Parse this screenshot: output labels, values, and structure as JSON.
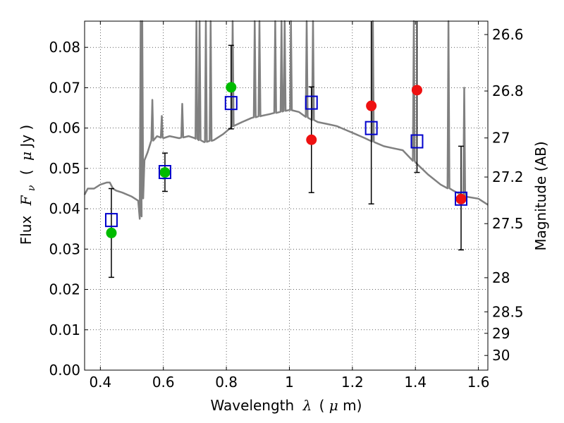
{
  "chart_data": {
    "type": "scatter",
    "xlabel_text": "Wavelength",
    "xlabel_symbol": "λ",
    "xlabel_unit_open": "(",
    "xlabel_unit_mu": "μ",
    "xlabel_unit_rest": "m)",
    "ylabel_text": "Flux",
    "ylabel_symbol": "F",
    "ylabel_sub": "ν",
    "ylabel_unit_open": "(",
    "ylabel_unit_mu": "μ",
    "ylabel_unit_rest": "Jy )",
    "y2label": "Magnitude (AB)",
    "xlim": [
      0.35,
      1.63
    ],
    "ylim": [
      0.0,
      0.0865
    ],
    "grid": true,
    "x_ticks": [
      0.4,
      0.6,
      0.8,
      1.0,
      1.2,
      1.4,
      1.6
    ],
    "x_tick_labels": [
      "0.4",
      "0.6",
      "0.8",
      "1",
      "1.2",
      "1.4",
      "1.6"
    ],
    "y_ticks": [
      0.0,
      0.01,
      0.02,
      0.03,
      0.04,
      0.05,
      0.06,
      0.07,
      0.08
    ],
    "y_tick_labels": [
      "0.00",
      "0.01",
      "0.02",
      "0.03",
      "0.04",
      "0.05",
      "0.06",
      "0.07",
      "0.08"
    ],
    "magnitude_ticks": [
      26.6,
      26.8,
      27.0,
      27.2,
      27.5,
      28.0,
      28.5,
      29.0,
      30.0
    ],
    "magnitude_tick_labels": [
      "26.6",
      "26.8",
      "27",
      "27.2",
      "27.5",
      "28",
      "28.5",
      "29",
      "30"
    ],
    "colors": {
      "model": "#808080",
      "model_bands": "#0000cc",
      "optical": "#00bb00",
      "nir": "#ee1111",
      "errorbar": "#000000"
    },
    "model_spectrum": {
      "x": [
        0.35,
        0.36,
        0.38,
        0.4,
        0.42,
        0.43,
        0.44,
        0.45,
        0.47,
        0.5,
        0.52,
        0.525,
        0.53,
        0.54,
        0.55,
        0.56,
        0.58,
        0.6,
        0.62,
        0.65,
        0.68,
        0.7,
        0.73,
        0.76,
        0.79,
        0.82,
        0.85,
        0.88,
        0.91,
        0.94,
        0.97,
        1.0,
        1.03,
        1.06,
        1.09,
        1.12,
        1.15,
        1.18,
        1.21,
        1.24,
        1.27,
        1.3,
        1.33,
        1.36,
        1.4,
        1.44,
        1.48,
        1.52,
        1.56,
        1.6,
        1.63
      ],
      "y": [
        0.0435,
        0.045,
        0.045,
        0.046,
        0.0465,
        0.0465,
        0.045,
        0.0445,
        0.044,
        0.043,
        0.042,
        0.0375,
        0.0385,
        0.052,
        0.054,
        0.0565,
        0.058,
        0.0575,
        0.058,
        0.0575,
        0.058,
        0.0575,
        0.0565,
        0.057,
        0.0585,
        0.0605,
        0.0615,
        0.0625,
        0.063,
        0.0635,
        0.064,
        0.0645,
        0.064,
        0.0625,
        0.0615,
        0.061,
        0.0605,
        0.0595,
        0.0585,
        0.0575,
        0.0565,
        0.0555,
        0.055,
        0.0545,
        0.0515,
        0.0485,
        0.046,
        0.0445,
        0.043,
        0.0425,
        0.041
      ]
    },
    "model_emission_lines": [
      {
        "x": 0.528,
        "peak": 0.0865
      },
      {
        "x": 0.533,
        "peak": 0.0865
      },
      {
        "x": 0.565,
        "peak": 0.067
      },
      {
        "x": 0.595,
        "peak": 0.063
      },
      {
        "x": 0.66,
        "peak": 0.066
      },
      {
        "x": 0.705,
        "peak": 0.0865
      },
      {
        "x": 0.715,
        "peak": 0.0865
      },
      {
        "x": 0.735,
        "peak": 0.0865
      },
      {
        "x": 0.75,
        "peak": 0.0865
      },
      {
        "x": 0.82,
        "peak": 0.0865
      },
      {
        "x": 0.89,
        "peak": 0.0865
      },
      {
        "x": 0.905,
        "peak": 0.0865
      },
      {
        "x": 0.955,
        "peak": 0.0865
      },
      {
        "x": 0.975,
        "peak": 0.0865
      },
      {
        "x": 0.985,
        "peak": 0.0865
      },
      {
        "x": 1.005,
        "peak": 0.0865
      },
      {
        "x": 1.055,
        "peak": 0.0865
      },
      {
        "x": 1.075,
        "peak": 0.0865
      },
      {
        "x": 1.265,
        "peak": 0.0865
      },
      {
        "x": 1.395,
        "peak": 0.0865
      },
      {
        "x": 1.505,
        "peak": 0.0865
      },
      {
        "x": 1.555,
        "peak": 0.07
      }
    ],
    "series": [
      {
        "marker": "open-square",
        "x": [
          0.435,
          0.605,
          0.815,
          1.07,
          1.26,
          1.405,
          1.545
        ],
        "values": [
          0.0372,
          0.0491,
          0.0662,
          0.0663,
          0.06,
          0.0567,
          0.0425
        ]
      },
      {
        "marker": "filled-circle",
        "x": [
          0.435,
          0.605,
          0.815
        ],
        "values": [
          0.034,
          0.049,
          0.0701
        ],
        "yerr_low": [
          0.023,
          0.0443,
          0.0598
        ],
        "yerr_high": [
          0.045,
          0.0538,
          0.0805
        ],
        "color_key": "optical"
      },
      {
        "marker": "filled-circle",
        "x": [
          1.07,
          1.26,
          1.405,
          1.545
        ],
        "values": [
          0.0571,
          0.0655,
          0.0694,
          0.0424
        ],
        "yerr_low": [
          0.044,
          0.0412,
          0.049,
          0.0298
        ],
        "yerr_high": [
          0.0702,
          0.087,
          0.087,
          0.0555
        ],
        "color_key": "nir"
      }
    ]
  }
}
